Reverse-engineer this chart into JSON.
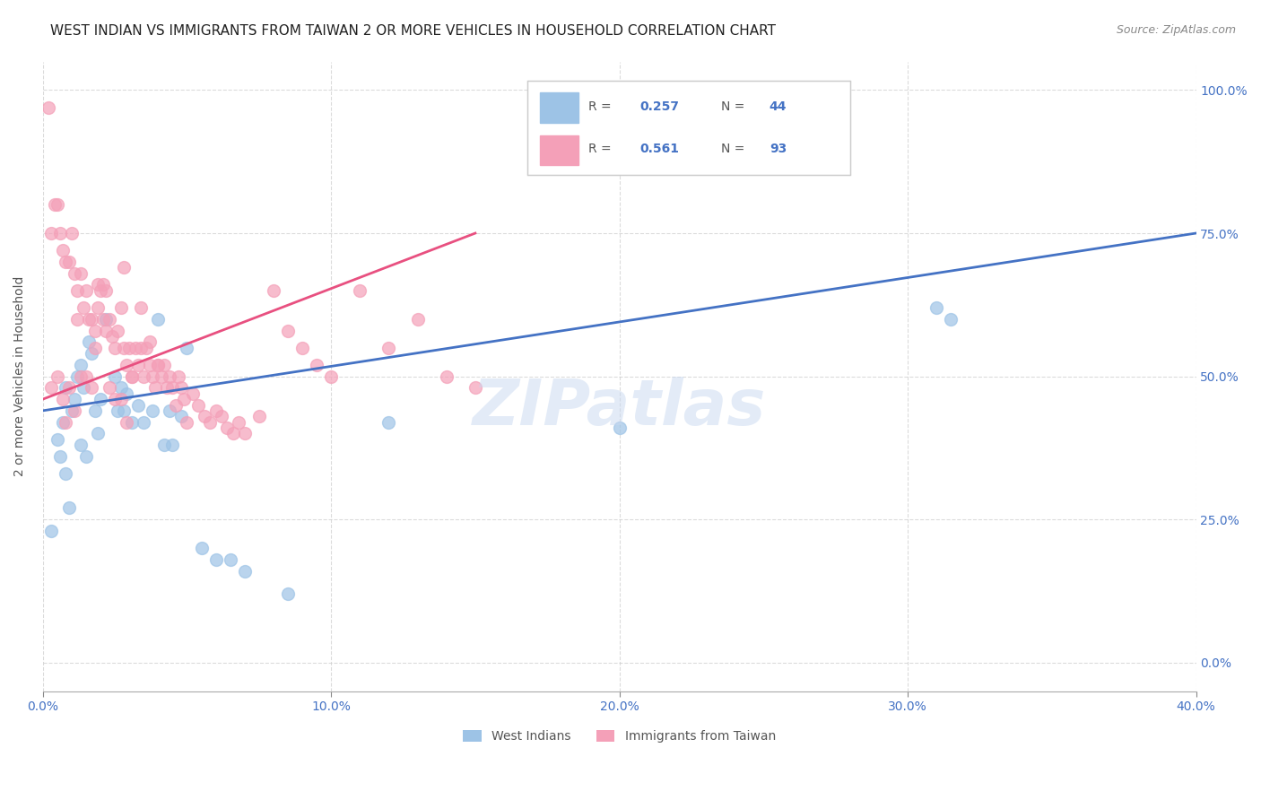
{
  "title": "WEST INDIAN VS IMMIGRANTS FROM TAIWAN 2 OR MORE VEHICLES IN HOUSEHOLD CORRELATION CHART",
  "source": "Source: ZipAtlas.com",
  "xlabel_ticks": [
    "0.0%",
    "10.0%",
    "20.0%",
    "30.0%",
    "40.0%"
  ],
  "xlabel_tick_vals": [
    0.0,
    0.1,
    0.2,
    0.3,
    0.4
  ],
  "ylabel": "2 or more Vehicles in Household",
  "ylabel_ticks": [
    "0.0%",
    "25.0%",
    "50.0%",
    "75.0%",
    "100.0%"
  ],
  "ylabel_tick_vals": [
    0.0,
    0.25,
    0.5,
    0.75,
    1.0
  ],
  "xlim": [
    0.0,
    0.4
  ],
  "ylim": [
    -0.05,
    1.05
  ],
  "legend_entries": [
    {
      "label": "West Indians",
      "color": "#6baed6",
      "R": 0.257,
      "N": 44
    },
    {
      "label": "Immigrants from Taiwan",
      "color": "#fa9fb5",
      "R": 0.561,
      "N": 93
    }
  ],
  "watermark": "ZIPatlas",
  "blue_scatter_x": [
    0.003,
    0.005,
    0.006,
    0.007,
    0.008,
    0.008,
    0.009,
    0.01,
    0.011,
    0.012,
    0.013,
    0.013,
    0.014,
    0.015,
    0.016,
    0.017,
    0.018,
    0.019,
    0.02,
    0.022,
    0.025,
    0.026,
    0.027,
    0.028,
    0.029,
    0.031,
    0.033,
    0.035,
    0.038,
    0.04,
    0.042,
    0.044,
    0.045,
    0.048,
    0.05,
    0.055,
    0.06,
    0.065,
    0.07,
    0.085,
    0.12,
    0.2,
    0.31,
    0.315
  ],
  "blue_scatter_y": [
    0.23,
    0.39,
    0.36,
    0.42,
    0.33,
    0.48,
    0.27,
    0.44,
    0.46,
    0.5,
    0.38,
    0.52,
    0.48,
    0.36,
    0.56,
    0.54,
    0.44,
    0.4,
    0.46,
    0.6,
    0.5,
    0.44,
    0.48,
    0.44,
    0.47,
    0.42,
    0.45,
    0.42,
    0.44,
    0.6,
    0.38,
    0.44,
    0.38,
    0.43,
    0.55,
    0.2,
    0.18,
    0.18,
    0.16,
    0.12,
    0.42,
    0.41,
    0.62,
    0.6
  ],
  "pink_scatter_x": [
    0.002,
    0.003,
    0.004,
    0.005,
    0.006,
    0.007,
    0.008,
    0.009,
    0.01,
    0.011,
    0.012,
    0.013,
    0.014,
    0.015,
    0.016,
    0.017,
    0.018,
    0.019,
    0.02,
    0.021,
    0.022,
    0.023,
    0.024,
    0.025,
    0.026,
    0.027,
    0.028,
    0.029,
    0.03,
    0.031,
    0.032,
    0.033,
    0.034,
    0.035,
    0.036,
    0.037,
    0.038,
    0.039,
    0.04,
    0.041,
    0.042,
    0.043,
    0.044,
    0.045,
    0.046,
    0.047,
    0.048,
    0.049,
    0.05,
    0.052,
    0.054,
    0.056,
    0.058,
    0.06,
    0.062,
    0.064,
    0.066,
    0.068,
    0.07,
    0.075,
    0.08,
    0.085,
    0.09,
    0.095,
    0.1,
    0.11,
    0.12,
    0.13,
    0.14,
    0.15,
    0.003,
    0.005,
    0.007,
    0.009,
    0.011,
    0.013,
    0.015,
    0.017,
    0.019,
    0.021,
    0.023,
    0.025,
    0.027,
    0.029,
    0.031,
    0.034,
    0.037,
    0.04,
    0.028,
    0.022,
    0.018,
    0.012,
    0.008
  ],
  "pink_scatter_y": [
    0.97,
    0.75,
    0.8,
    0.8,
    0.75,
    0.72,
    0.7,
    0.7,
    0.75,
    0.68,
    0.65,
    0.68,
    0.62,
    0.65,
    0.6,
    0.6,
    0.58,
    0.62,
    0.65,
    0.6,
    0.58,
    0.6,
    0.57,
    0.55,
    0.58,
    0.62,
    0.55,
    0.52,
    0.55,
    0.5,
    0.55,
    0.52,
    0.55,
    0.5,
    0.55,
    0.52,
    0.5,
    0.48,
    0.52,
    0.5,
    0.52,
    0.48,
    0.5,
    0.48,
    0.45,
    0.5,
    0.48,
    0.46,
    0.42,
    0.47,
    0.45,
    0.43,
    0.42,
    0.44,
    0.43,
    0.41,
    0.4,
    0.42,
    0.4,
    0.43,
    0.65,
    0.58,
    0.55,
    0.52,
    0.5,
    0.65,
    0.55,
    0.6,
    0.5,
    0.48,
    0.48,
    0.5,
    0.46,
    0.48,
    0.44,
    0.5,
    0.5,
    0.48,
    0.66,
    0.66,
    0.48,
    0.46,
    0.46,
    0.42,
    0.5,
    0.62,
    0.56,
    0.52,
    0.69,
    0.65,
    0.55,
    0.6,
    0.42
  ],
  "blue_line_x": [
    0.0,
    0.4
  ],
  "blue_line_y": [
    0.44,
    0.75
  ],
  "pink_line_x": [
    0.0,
    0.15
  ],
  "pink_line_y": [
    0.46,
    0.75
  ],
  "blue_color": "#4472c4",
  "pink_color": "#e07090",
  "blue_scatter_color": "#9dc3e6",
  "pink_scatter_color": "#f4a0b8",
  "grid_color": "#cccccc",
  "background_color": "#ffffff",
  "title_fontsize": 11,
  "axis_label_fontsize": 10,
  "tick_fontsize": 10
}
